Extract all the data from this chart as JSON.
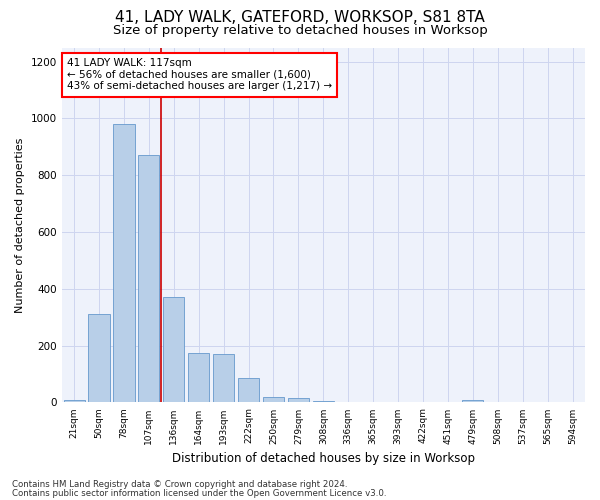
{
  "title1": "41, LADY WALK, GATEFORD, WORKSOP, S81 8TA",
  "title2": "Size of property relative to detached houses in Worksop",
  "xlabel": "Distribution of detached houses by size in Worksop",
  "ylabel": "Number of detached properties",
  "categories": [
    "21sqm",
    "50sqm",
    "78sqm",
    "107sqm",
    "136sqm",
    "164sqm",
    "193sqm",
    "222sqm",
    "250sqm",
    "279sqm",
    "308sqm",
    "336sqm",
    "365sqm",
    "393sqm",
    "422sqm",
    "451sqm",
    "479sqm",
    "508sqm",
    "537sqm",
    "565sqm",
    "594sqm"
  ],
  "values": [
    10,
    310,
    980,
    870,
    370,
    175,
    170,
    85,
    20,
    15,
    5,
    2,
    1,
    1,
    0,
    0,
    10,
    0,
    0,
    0,
    0
  ],
  "bar_color": "#b8cfe8",
  "bar_edge_color": "#6699cc",
  "property_line_x": 3.5,
  "annotation_line1": "41 LADY WALK: 117sqm",
  "annotation_line2": "← 56% of detached houses are smaller (1,600)",
  "annotation_line3": "43% of semi-detached houses are larger (1,217) →",
  "annotation_box_color": "white",
  "annotation_box_edge": "red",
  "ylim": [
    0,
    1250
  ],
  "yticks": [
    0,
    200,
    400,
    600,
    800,
    1000,
    1200
  ],
  "footer1": "Contains HM Land Registry data © Crown copyright and database right 2024.",
  "footer2": "Contains public sector information licensed under the Open Government Licence v3.0.",
  "bg_color": "#eef2fb",
  "grid_color": "#cdd5ef",
  "title1_fontsize": 11,
  "title2_fontsize": 9.5,
  "xlabel_fontsize": 8.5,
  "ylabel_fontsize": 8,
  "red_line_color": "#cc0000",
  "annotation_fontsize": 7.5
}
